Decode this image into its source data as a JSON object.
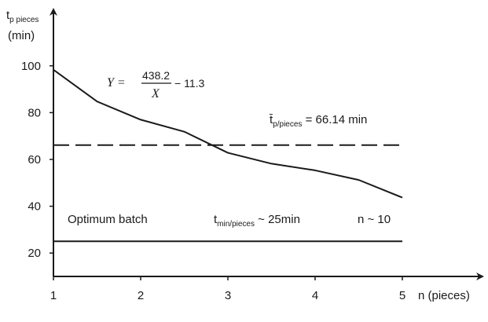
{
  "chart_data": {
    "type": "line",
    "x": [
      1,
      1.5,
      2,
      2.5,
      3,
      3.5,
      4,
      4.5,
      5
    ],
    "series": [
      {
        "values": [
          98.3,
          84.77,
          76.98,
          71.86,
          62.83,
          58.18,
          55.33,
          51.23,
          43.7
        ],
        "style": "solid-curve"
      },
      {
        "values": [
          66.14,
          66.14,
          66.14,
          66.14,
          66.14,
          66.14,
          66.14,
          66.14,
          66.14
        ],
        "style": "dashed"
      },
      {
        "values": [
          25,
          25,
          25,
          25,
          25,
          25,
          25,
          25,
          25
        ],
        "style": "solid"
      }
    ],
    "xlim": [
      1,
      5.5
    ],
    "ylim": [
      10,
      110
    ],
    "x_ticks": [
      "1",
      "2",
      "3",
      "4",
      "5"
    ],
    "y_ticks": [
      "20",
      "40",
      "60",
      "80",
      "100"
    ],
    "ylabel_main": "t",
    "ylabel_sub": "p pieces",
    "ylabel_unit": "(min)",
    "xlabel": "n (pieces)",
    "equation": {
      "lhs": "Y =",
      "numerator": "438.2",
      "denominator": "X",
      "rhs": "− 11.3"
    },
    "mean_annotation": {
      "symbol": "t̄",
      "sub": "p/pieces",
      "text": " = 66.14 min"
    },
    "optimum_annotation": {
      "label": "Optimum batch",
      "t_symbol": "t",
      "t_sub": "min/pieces",
      "t_text": " ~ 25min",
      "n_text": "n ~ 10"
    },
    "grid": false
  }
}
